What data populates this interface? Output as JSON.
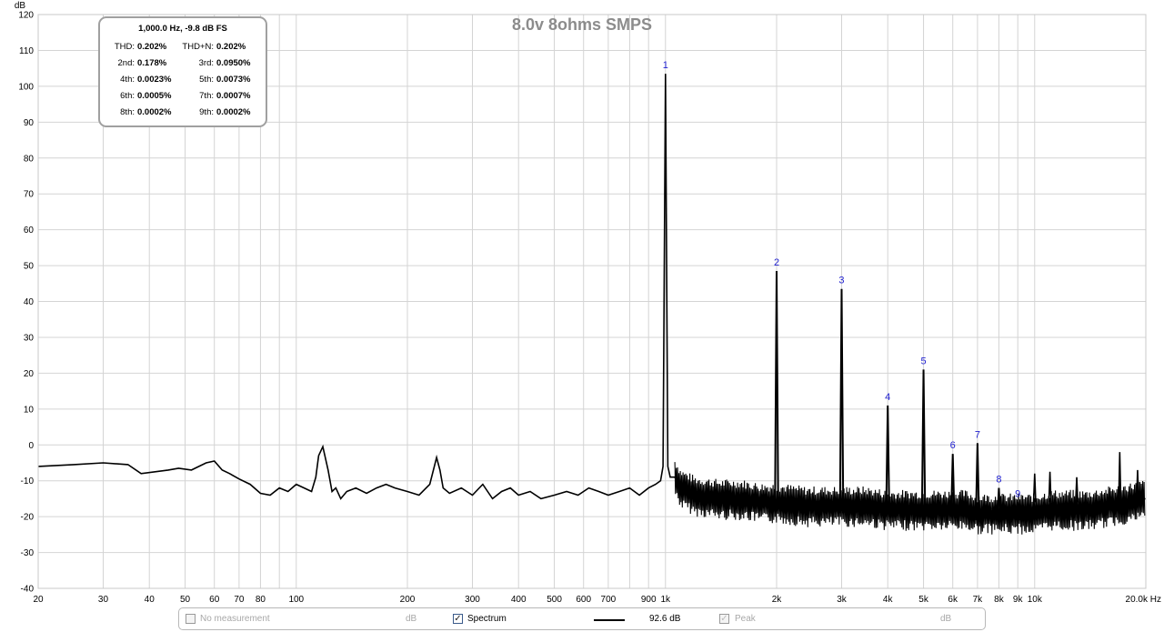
{
  "chart_data": {
    "type": "line",
    "title": "8.0v 8ohms SMPS",
    "ylabel": "dB",
    "xunit": "Hz",
    "xscale": "log",
    "xlim": [
      20,
      20000
    ],
    "ylim": [
      -40,
      120
    ],
    "grid": true,
    "yticks": [
      120,
      110,
      100,
      90,
      80,
      70,
      60,
      50,
      40,
      30,
      20,
      10,
      0,
      -10,
      -20,
      -30,
      -40
    ],
    "xticks": [
      {
        "v": 20,
        "t": "20"
      },
      {
        "v": 30,
        "t": "30"
      },
      {
        "v": 40,
        "t": "40"
      },
      {
        "v": 50,
        "t": "50"
      },
      {
        "v": 60,
        "t": "60"
      },
      {
        "v": 70,
        "t": "70"
      },
      {
        "v": 80,
        "t": "80"
      },
      {
        "v": 100,
        "t": "100"
      },
      {
        "v": 200,
        "t": "200"
      },
      {
        "v": 300,
        "t": "300"
      },
      {
        "v": 400,
        "t": "400"
      },
      {
        "v": 500,
        "t": "500"
      },
      {
        "v": 600,
        "t": "600"
      },
      {
        "v": 700,
        "t": "700"
      },
      {
        "v": 900,
        "t": "900"
      },
      {
        "v": 1000,
        "t": "1k"
      },
      {
        "v": 2000,
        "t": "2k"
      },
      {
        "v": 3000,
        "t": "3k"
      },
      {
        "v": 4000,
        "t": "4k"
      },
      {
        "v": 5000,
        "t": "5k"
      },
      {
        "v": 6000,
        "t": "6k"
      },
      {
        "v": 7000,
        "t": "7k"
      },
      {
        "v": 8000,
        "t": "8k"
      },
      {
        "v": 9000,
        "t": "9k"
      },
      {
        "v": 10000,
        "t": "10k"
      },
      {
        "v": 20000,
        "t": "20.0k Hz"
      }
    ],
    "series": [
      {
        "x": [
          20,
          25,
          30,
          35,
          38,
          45,
          48,
          52,
          57,
          60,
          63,
          66,
          70,
          75,
          80,
          85,
          90,
          95,
          100,
          105,
          110,
          113,
          115,
          118,
          122,
          125,
          128,
          132,
          137,
          145,
          155,
          165,
          175,
          185,
          200,
          215,
          230,
          240,
          245,
          250,
          260,
          280,
          300,
          320,
          340,
          360,
          380,
          400,
          430,
          460,
          500,
          540,
          580,
          620,
          660,
          700,
          750,
          800,
          850,
          900,
          940,
          970,
          985,
          1000,
          1015,
          1030,
          1060,
          1100,
          1200,
          1400,
          1600,
          1800,
          2000,
          2400,
          2800,
          3000,
          3500,
          4000,
          4500,
          5000,
          5500,
          6000,
          6500,
          7000,
          8000,
          9000,
          10000,
          11000,
          12000,
          14000,
          16000,
          18000,
          20000
        ],
        "y": [
          -6,
          -5.5,
          -5,
          -5.5,
          -8,
          -7,
          -6.5,
          -7,
          -5,
          -4.5,
          -7,
          -8,
          -9.5,
          -11,
          -13.5,
          -14,
          -12,
          -13,
          -11,
          -12,
          -13,
          -9,
          -3,
          -0.5,
          -7,
          -13,
          -12,
          -15,
          -13,
          -12,
          -13.5,
          -12,
          -11,
          -12,
          -13,
          -14,
          -11,
          -3.5,
          -7,
          -12,
          -13.5,
          -12,
          -14,
          -11,
          -15,
          -13,
          -12,
          -14,
          -13,
          -15,
          -14,
          -13,
          -14,
          -12,
          -13,
          -14,
          -13,
          -12,
          -14,
          -12,
          -11,
          -10,
          -6,
          103.5,
          -6,
          -9,
          -9,
          -12,
          -14,
          -15,
          -15,
          -16,
          -16,
          -17,
          -17,
          -17,
          -17,
          -18,
          -18,
          -18,
          -18,
          -18,
          -18,
          -19,
          -19,
          -19,
          -19,
          -18,
          -18,
          -18,
          -17,
          -16,
          -15
        ]
      }
    ],
    "harmonics": [
      {
        "label": "1",
        "f": 1000,
        "db": 103.5
      },
      {
        "label": "2",
        "f": 2000,
        "db": 48.5
      },
      {
        "label": "3",
        "f": 3000,
        "db": 43.5
      },
      {
        "label": "4",
        "f": 4000,
        "db": 11
      },
      {
        "label": "5",
        "f": 5000,
        "db": 21
      },
      {
        "label": "6",
        "f": 6000,
        "db": -2.5
      },
      {
        "label": "7",
        "f": 7000,
        "db": 0.5
      },
      {
        "label": "8",
        "f": 8000,
        "db": -12
      },
      {
        "label": "9",
        "f": 9000,
        "db": -16
      }
    ],
    "spurs": [
      {
        "f": 10000,
        "db": -8
      },
      {
        "f": 11000,
        "db": -7.5
      },
      {
        "f": 13000,
        "db": -9
      },
      {
        "f": 17000,
        "db": -2
      },
      {
        "f": 19000,
        "db": -7
      }
    ]
  },
  "info_box": {
    "header": "1,000.0 Hz, -9.8 dB FS",
    "rows": [
      {
        "l1": "THD:",
        "v1": "0.202%",
        "l2": "THD+N:",
        "v2": "0.202%"
      },
      {
        "l1": "2nd:",
        "v1": "0.178%",
        "l2": "3rd:",
        "v2": "0.0950%"
      },
      {
        "l1": "4th:",
        "v1": "0.0023%",
        "l2": "5th:",
        "v2": "0.0073%"
      },
      {
        "l1": "6th:",
        "v1": "0.0005%",
        "l2": "7th:",
        "v2": "0.0007%"
      },
      {
        "l1": "8th:",
        "v1": "0.0002%",
        "l2": "9th:",
        "v2": "0.0002%"
      }
    ]
  },
  "legend": {
    "no_measurement": "No measurement",
    "no_measurement_unit": "dB",
    "spectrum": "Spectrum",
    "spectrum_value": "92.6 dB",
    "peak": "Peak",
    "peak_unit": "dB",
    "spectrum_checked": true,
    "peak_checked": true
  }
}
